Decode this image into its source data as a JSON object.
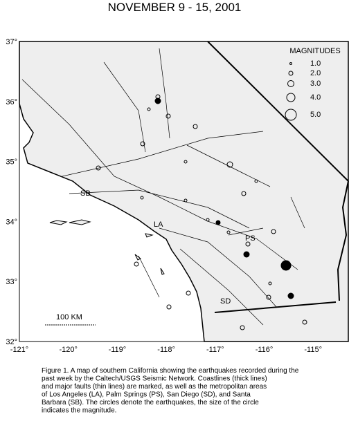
{
  "title": "NOVEMBER 9 - 15, 2001",
  "map": {
    "lat_labels": [
      "37°",
      "36°",
      "35°",
      "34°",
      "33°",
      "32°"
    ],
    "lon_labels": [
      "-121°",
      "-120°",
      "-119°",
      "-118°",
      "-117°",
      "-116°",
      "-115°"
    ],
    "legend": {
      "title": "MAGNITUDES",
      "entries": [
        "1.0",
        "2.0",
        "3.0",
        "4.0",
        "5.0"
      ]
    },
    "places": {
      "sb": "SB",
      "la": "LA",
      "ps": "PS",
      "sd": "SD"
    },
    "scale": "100 KM"
  },
  "caption": [
    "Figure 1. A map of southern California showing the earthquakes recorded during the",
    "past week by the Caltech/USGS Seismic Network.  Coastlines (thick lines)",
    "and major faults (thin lines) are marked, as well as the metropolitan areas",
    "of Los Angeles (LA), Palm Springs (PS), San Diego (SD), and Santa",
    "Barbara (SB).  The circles denote the earthquakes, the size of the circle",
    "indicates the magnitude."
  ]
}
